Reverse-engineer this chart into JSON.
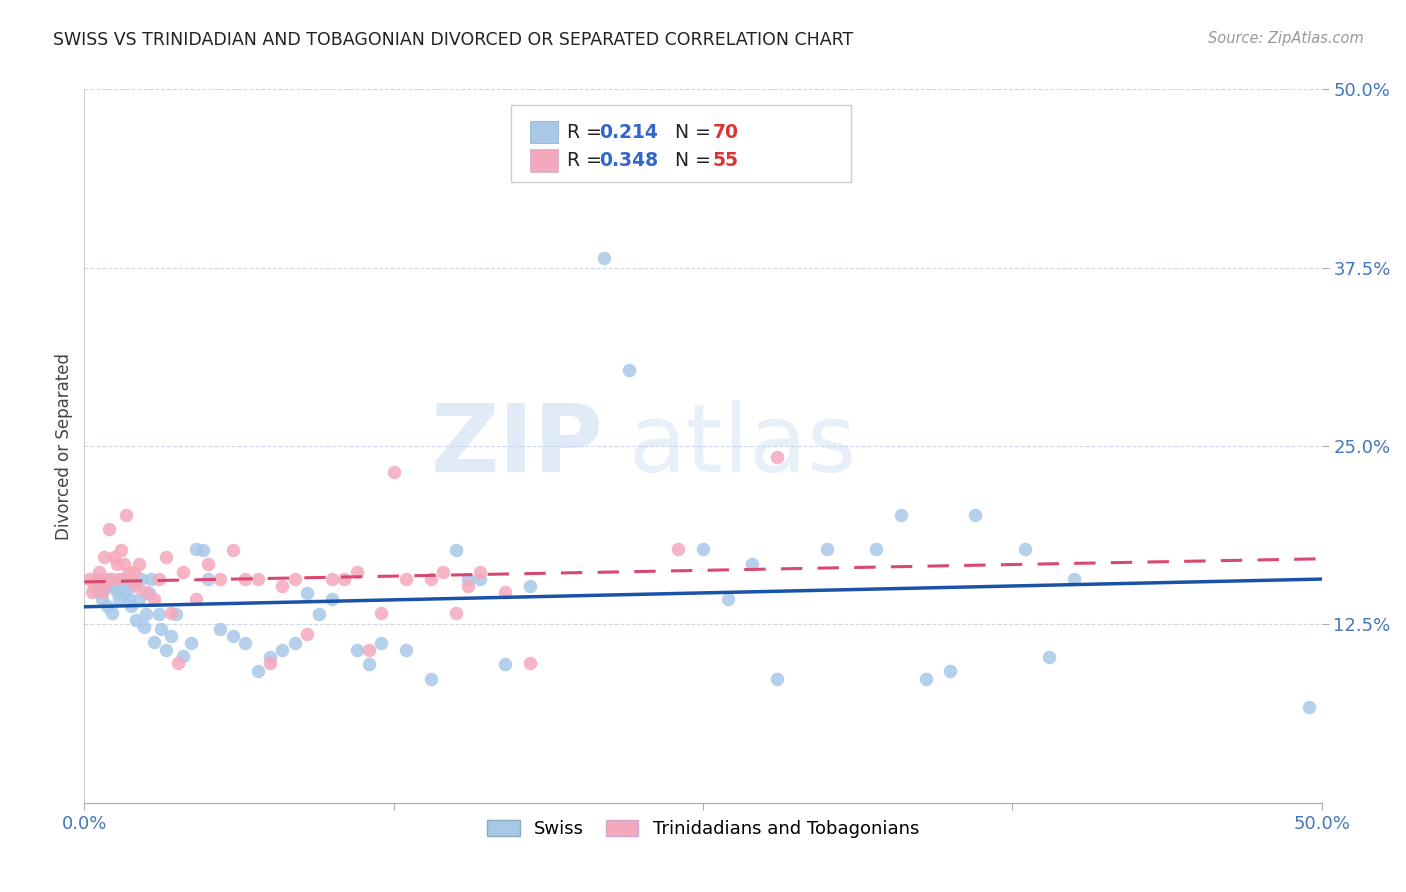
{
  "title": "SWISS VS TRINIDADIAN AND TOBAGONIAN DIVORCED OR SEPARATED CORRELATION CHART",
  "source": "Source: ZipAtlas.com",
  "ylabel": "Divorced or Separated",
  "xlim": [
    0.0,
    0.5
  ],
  "ylim": [
    0.0,
    0.5
  ],
  "xtick_labels_shown": [
    "0.0%",
    "50.0%"
  ],
  "xtick_vals_shown": [
    0.0,
    0.5
  ],
  "xtick_vals_minor": [
    0.125,
    0.25,
    0.375
  ],
  "ytick_labels": [
    "12.5%",
    "25.0%",
    "37.5%",
    "50.0%"
  ],
  "ytick_vals": [
    0.125,
    0.25,
    0.375,
    0.5
  ],
  "legend_labels": [
    "Swiss",
    "Trinidadians and Tobagonians"
  ],
  "blue_R": 0.214,
  "blue_N": 70,
  "pink_R": 0.348,
  "pink_N": 55,
  "blue_color": "#a8c8e8",
  "pink_color": "#f4a8bc",
  "blue_line_color": "#1a52a8",
  "pink_line_color": "#d84870",
  "background_color": "#ffffff",
  "grid_color": "#d0d8e8",
  "watermark_zip": "ZIP",
  "watermark_atlas": "atlas",
  "blue_scatter_x": [
    0.004,
    0.006,
    0.007,
    0.008,
    0.009,
    0.01,
    0.011,
    0.012,
    0.013,
    0.014,
    0.015,
    0.016,
    0.017,
    0.018,
    0.019,
    0.02,
    0.021,
    0.022,
    0.023,
    0.024,
    0.025,
    0.026,
    0.027,
    0.028,
    0.03,
    0.031,
    0.033,
    0.035,
    0.037,
    0.04,
    0.043,
    0.045,
    0.048,
    0.05,
    0.055,
    0.06,
    0.065,
    0.07,
    0.075,
    0.08,
    0.085,
    0.09,
    0.095,
    0.1,
    0.11,
    0.115,
    0.12,
    0.13,
    0.14,
    0.15,
    0.155,
    0.16,
    0.17,
    0.18,
    0.21,
    0.22,
    0.25,
    0.26,
    0.27,
    0.28,
    0.3,
    0.32,
    0.33,
    0.34,
    0.35,
    0.36,
    0.38,
    0.39,
    0.4,
    0.495
  ],
  "blue_scatter_y": [
    0.155,
    0.148,
    0.143,
    0.15,
    0.138,
    0.156,
    0.133,
    0.151,
    0.148,
    0.143,
    0.157,
    0.152,
    0.147,
    0.143,
    0.138,
    0.153,
    0.128,
    0.143,
    0.157,
    0.123,
    0.132,
    0.147,
    0.157,
    0.113,
    0.132,
    0.122,
    0.107,
    0.117,
    0.132,
    0.103,
    0.112,
    0.178,
    0.177,
    0.157,
    0.122,
    0.117,
    0.112,
    0.092,
    0.102,
    0.107,
    0.112,
    0.147,
    0.132,
    0.143,
    0.107,
    0.097,
    0.112,
    0.107,
    0.087,
    0.177,
    0.157,
    0.157,
    0.097,
    0.152,
    0.382,
    0.303,
    0.178,
    0.143,
    0.167,
    0.087,
    0.178,
    0.178,
    0.202,
    0.087,
    0.092,
    0.202,
    0.178,
    0.102,
    0.157,
    0.067
  ],
  "pink_scatter_x": [
    0.002,
    0.003,
    0.004,
    0.005,
    0.006,
    0.007,
    0.008,
    0.008,
    0.009,
    0.01,
    0.011,
    0.012,
    0.013,
    0.014,
    0.015,
    0.016,
    0.017,
    0.018,
    0.019,
    0.02,
    0.021,
    0.022,
    0.025,
    0.028,
    0.03,
    0.033,
    0.035,
    0.038,
    0.04,
    0.045,
    0.05,
    0.055,
    0.06,
    0.065,
    0.07,
    0.075,
    0.08,
    0.085,
    0.09,
    0.1,
    0.105,
    0.11,
    0.115,
    0.12,
    0.125,
    0.13,
    0.14,
    0.145,
    0.15,
    0.155,
    0.16,
    0.17,
    0.18,
    0.24,
    0.28
  ],
  "pink_scatter_y": [
    0.157,
    0.148,
    0.152,
    0.157,
    0.162,
    0.148,
    0.153,
    0.172,
    0.157,
    0.192,
    0.157,
    0.172,
    0.167,
    0.157,
    0.177,
    0.167,
    0.202,
    0.162,
    0.157,
    0.162,
    0.152,
    0.167,
    0.148,
    0.143,
    0.157,
    0.172,
    0.133,
    0.098,
    0.162,
    0.143,
    0.167,
    0.157,
    0.177,
    0.157,
    0.157,
    0.098,
    0.152,
    0.157,
    0.118,
    0.157,
    0.157,
    0.162,
    0.107,
    0.133,
    0.232,
    0.157,
    0.157,
    0.162,
    0.133,
    0.152,
    0.162,
    0.148,
    0.098,
    0.178,
    0.242
  ]
}
